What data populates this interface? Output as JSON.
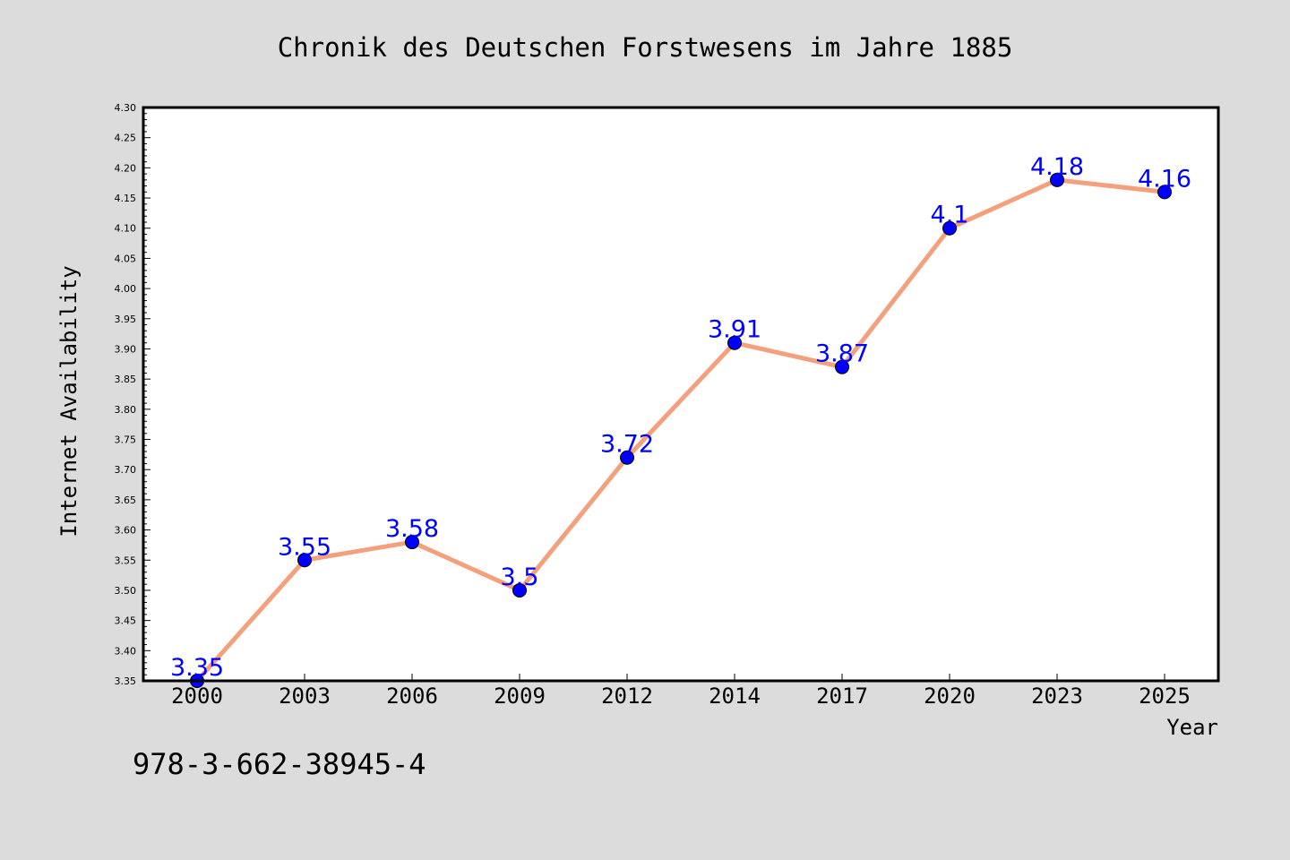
{
  "chart_data": {
    "type": "line",
    "title": "Chronik des Deutschen Forstwesens im Jahre 1885",
    "xlabel": "Year",
    "ylabel": "Internet Availability",
    "categories": [
      "2000",
      "2003",
      "2006",
      "2009",
      "2012",
      "2014",
      "2017",
      "2020",
      "2023",
      "2025"
    ],
    "series": [
      {
        "values": [
          3.35,
          3.55,
          3.58,
          3.5,
          3.72,
          3.91,
          3.87,
          4.1,
          4.18,
          4.16
        ],
        "labels": [
          "3.35",
          "3.55",
          "3.58",
          "3.5",
          "3.72",
          "3.91",
          "3.87",
          "4.1",
          "4.18",
          "4.16"
        ],
        "line_color": "#f4a07c",
        "marker_color": "#0000ff",
        "label_color": "#0000ff"
      }
    ],
    "ylim": [
      3.35,
      4.3
    ],
    "yticks": [
      "3.35",
      "3.40",
      "3.45",
      "3.50",
      "3.55",
      "3.60",
      "3.65",
      "3.70",
      "3.75",
      "3.80",
      "3.85",
      "3.90",
      "3.95",
      "4.00",
      "4.05",
      "4.10",
      "4.15",
      "4.20",
      "4.25",
      "4.30"
    ],
    "grid": false,
    "legend": "none",
    "background_color": "#dcdcdc",
    "plot_background_color": "#ffffff"
  },
  "footer": {
    "isbn": "978-3-662-38945-4"
  }
}
